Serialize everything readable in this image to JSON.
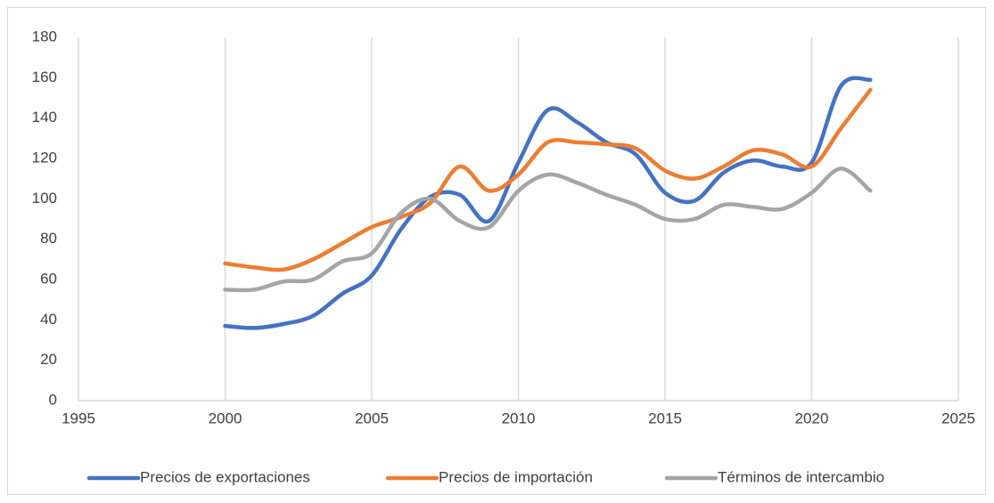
{
  "chart_data": {
    "type": "line",
    "x": [
      2000,
      2001,
      2002,
      2003,
      2004,
      2005,
      2006,
      2007,
      2008,
      2009,
      2010,
      2011,
      2012,
      2013,
      2014,
      2015,
      2016,
      2017,
      2018,
      2019,
      2020,
      2021,
      2022
    ],
    "series": [
      {
        "name": "Precios de exportaciones",
        "color": "#4472c4",
        "values": [
          37,
          36,
          38,
          42,
          53,
          62,
          85,
          101,
          102,
          89,
          118,
          144,
          138,
          128,
          122,
          103,
          99,
          113,
          119,
          116,
          118,
          156,
          159
        ]
      },
      {
        "name": "Precios de importación",
        "color": "#ed7d31",
        "values": [
          68,
          66,
          65,
          70,
          78,
          86,
          91,
          98,
          116,
          104,
          112,
          128,
          128,
          127,
          125,
          114,
          110,
          116,
          124,
          122,
          116,
          135,
          154
        ]
      },
      {
        "name": "Términos de intercambio",
        "color": "#a5a5a5",
        "values": [
          55,
          55,
          59,
          60,
          69,
          73,
          93,
          100,
          89,
          86,
          104,
          112,
          108,
          102,
          97,
          90,
          90,
          97,
          96,
          95,
          103,
          115,
          104
        ]
      }
    ],
    "xlim": [
      1995,
      2025
    ],
    "xticks": [
      1995,
      2000,
      2005,
      2010,
      2015,
      2020,
      2025
    ],
    "ylim": [
      0,
      180
    ],
    "yticks": [
      0,
      20,
      40,
      60,
      80,
      100,
      120,
      140,
      160,
      180
    ],
    "grid": "x",
    "legend": "bottom"
  }
}
